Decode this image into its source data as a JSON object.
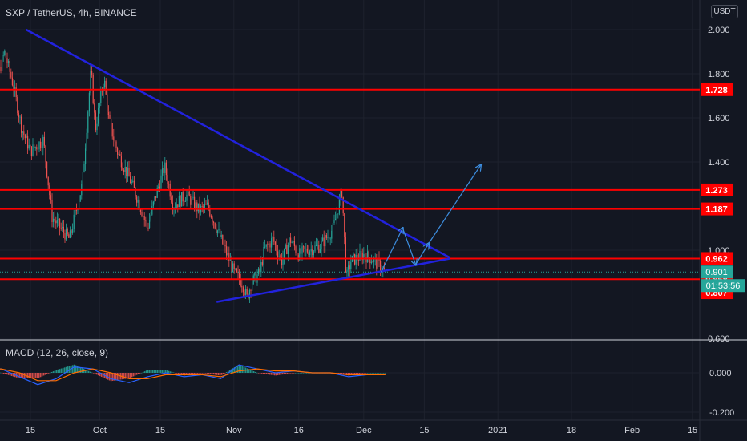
{
  "header": {
    "title": "SXP / TetherUS, 4h, BINANCE",
    "currency": "USDT"
  },
  "macd": {
    "title": "MACD (12, 26, close, 9)",
    "ticks": [
      "0.000",
      "-0.200"
    ],
    "zero": 0
  },
  "colors": {
    "background": "#131722",
    "grid": "#1e222d",
    "up": "#26a69a",
    "down": "#ef5350",
    "resistance": "#ff0000",
    "trendline": "#2222dd",
    "projection": "#3d8ee0",
    "last_price_badge": "#26a69a",
    "macd_line": "#2962ff",
    "signal_line": "#ff6d00"
  },
  "chart_data": {
    "type": "candlestick",
    "symbol": "SXP / TetherUS",
    "interval": "4h",
    "exchange": "BINANCE",
    "y_ticks": [
      "2.000",
      "1.800",
      "1.600",
      "1.400",
      "1.000",
      "0.600"
    ],
    "ylim": [
      0.6,
      2.07
    ],
    "x_ticks": [
      "15",
      "Oct",
      "15",
      "Nov",
      "16",
      "Dec",
      "15",
      "2021",
      "18",
      "Feb",
      "15"
    ],
    "horizontal_levels": [
      {
        "label": "1.728",
        "value": 1.728
      },
      {
        "label": "1.273",
        "value": 1.273
      },
      {
        "label": "1.187",
        "value": 1.187
      },
      {
        "label": "0.962",
        "value": 0.962
      },
      {
        "label": "0.868",
        "value": 0.868
      }
    ],
    "last_price": {
      "label": "0.901",
      "value": 0.901
    },
    "countdown": "01:53:56",
    "low_price": {
      "label": "0.807",
      "value": 0.807
    },
    "trendlines": [
      {
        "name": "descending",
        "from": [
          "Sep 14",
          2.0
        ],
        "to": [
          "Dec 21",
          0.965
        ]
      },
      {
        "name": "ascending",
        "from": [
          "Oct 28",
          0.765
        ],
        "to": [
          "Dec 21",
          0.962
        ]
      }
    ],
    "projection_path": [
      [
        "Dec 5",
        0.9
      ],
      [
        "Dec 10",
        1.1
      ],
      [
        "Dec 13",
        0.935
      ],
      [
        "Dec 16",
        1.03
      ],
      [
        "Dec 28",
        1.385
      ]
    ],
    "price_path": [
      [
        "Sep 4",
        1.7
      ],
      [
        "Sep 5",
        1.85
      ],
      [
        "Sep 6",
        1.95
      ],
      [
        "Sep 7",
        1.75
      ],
      [
        "Sep 9",
        1.9
      ],
      [
        "Sep 11",
        1.75
      ],
      [
        "Sep 13",
        1.55
      ],
      [
        "Sep 15",
        1.45
      ],
      [
        "Sep 18",
        1.5
      ],
      [
        "Sep 20",
        1.15
      ],
      [
        "Sep 22",
        1.1
      ],
      [
        "Sep 24",
        1.05
      ],
      [
        "Sep 27",
        1.3
      ],
      [
        "Sep 29",
        1.82
      ],
      [
        "Sep 30",
        1.55
      ],
      [
        "Oct 2",
        1.78
      ],
      [
        "Oct 3",
        1.6
      ],
      [
        "Oct 5",
        1.45
      ],
      [
        "Oct 8",
        1.32
      ],
      [
        "Oct 10",
        1.22
      ],
      [
        "Oct 12",
        1.1
      ],
      [
        "Oct 14",
        1.25
      ],
      [
        "Oct 16",
        1.38
      ],
      [
        "Oct 18",
        1.2
      ],
      [
        "Oct 21",
        1.25
      ],
      [
        "Oct 24",
        1.18
      ],
      [
        "Oct 26",
        1.2
      ],
      [
        "Oct 28",
        1.1
      ],
      [
        "Oct 30",
        1.0
      ],
      [
        "Nov 1",
        0.9
      ],
      [
        "Nov 3",
        0.85
      ],
      [
        "Nov 4",
        0.78
      ],
      [
        "Nov 5",
        0.85
      ],
      [
        "Nov 7",
        0.9
      ],
      [
        "Nov 8",
        1.0
      ],
      [
        "Nov 10",
        1.05
      ],
      [
        "Nov 12",
        0.95
      ],
      [
        "Nov 14",
        1.05
      ],
      [
        "Nov 16",
        0.98
      ],
      [
        "Nov 18",
        1.0
      ],
      [
        "Nov 21",
        1.02
      ],
      [
        "Nov 24",
        1.1
      ],
      [
        "Nov 26",
        1.27
      ],
      [
        "Nov 27",
        0.87
      ],
      [
        "Nov 28",
        0.95
      ],
      [
        "Dec 1",
        0.98
      ],
      [
        "Dec 3",
        0.96
      ],
      [
        "Dec 5",
        0.92
      ],
      [
        "Dec 6",
        0.9
      ]
    ],
    "macd_series": [
      {
        "name": "MACD",
        "values": [
          0.03,
          0.02,
          -0.02,
          -0.06,
          -0.03,
          0.03,
          0.02,
          -0.03,
          -0.05,
          -0.02,
          0.0,
          -0.02,
          -0.01,
          -0.03,
          0.04,
          0.02,
          0.0,
          0.01,
          0.0,
          0.0,
          -0.02,
          -0.01,
          -0.01
        ]
      },
      {
        "name": "Signal",
        "values": [
          0.01,
          0.02,
          0.0,
          -0.04,
          -0.04,
          0.0,
          0.02,
          0.0,
          -0.03,
          -0.03,
          -0.01,
          -0.01,
          -0.01,
          -0.02,
          0.01,
          0.02,
          0.01,
          0.01,
          0.0,
          0.0,
          -0.01,
          -0.01,
          -0.01
        ]
      }
    ]
  }
}
